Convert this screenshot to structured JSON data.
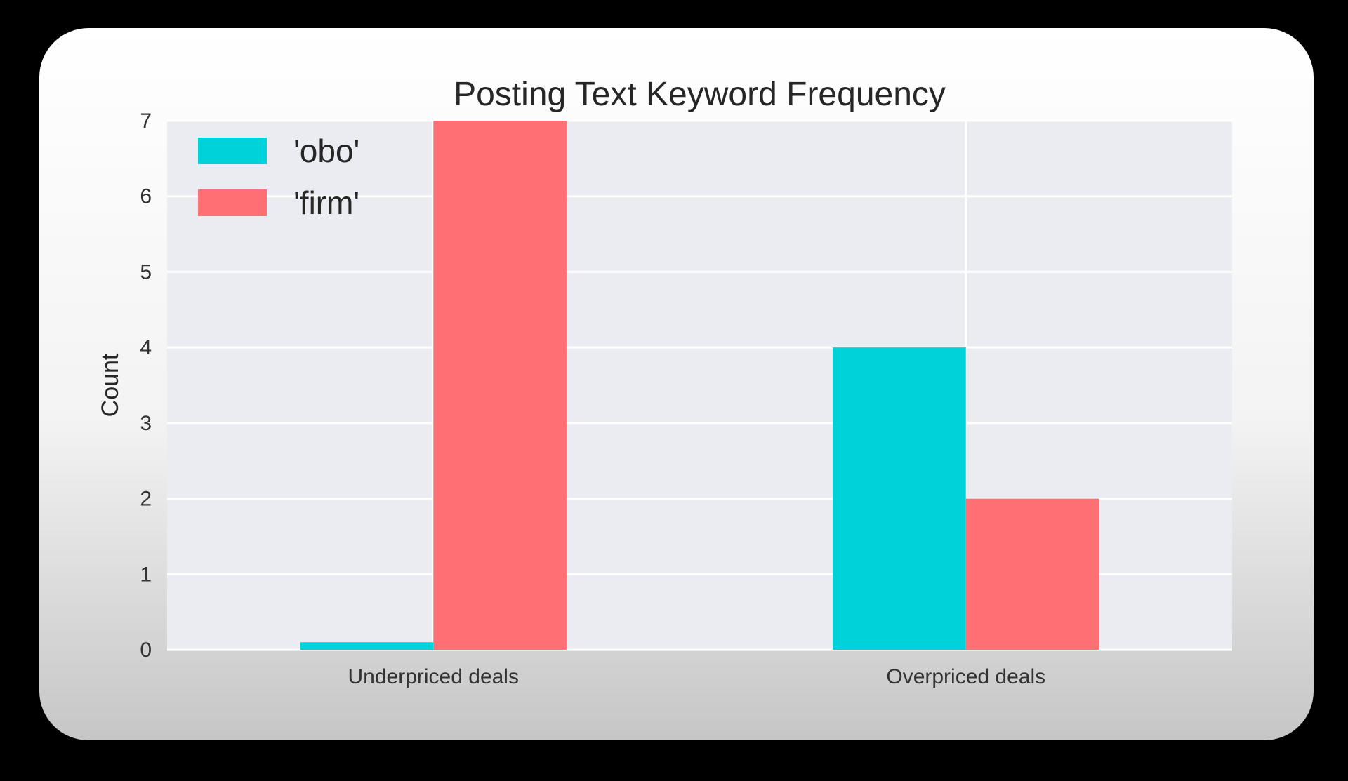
{
  "chart_data": {
    "type": "bar",
    "title": "Posting Text Keyword Frequency",
    "xlabel": "",
    "ylabel": "Count",
    "categories": [
      "Underpriced deals",
      "Overpriced deals"
    ],
    "series": [
      {
        "name": "'obo'",
        "values": [
          0.1,
          4
        ],
        "color": "#00d2d9"
      },
      {
        "name": "'firm'",
        "values": [
          7,
          2
        ],
        "color": "#ff6f74"
      }
    ],
    "ylim": [
      0,
      7
    ],
    "yticks": [
      0,
      1,
      2,
      3,
      4,
      5,
      6,
      7
    ],
    "grid": true,
    "legend_position": "top-left",
    "plot_background": "#ebebf2",
    "grid_color": "#ffffff"
  }
}
